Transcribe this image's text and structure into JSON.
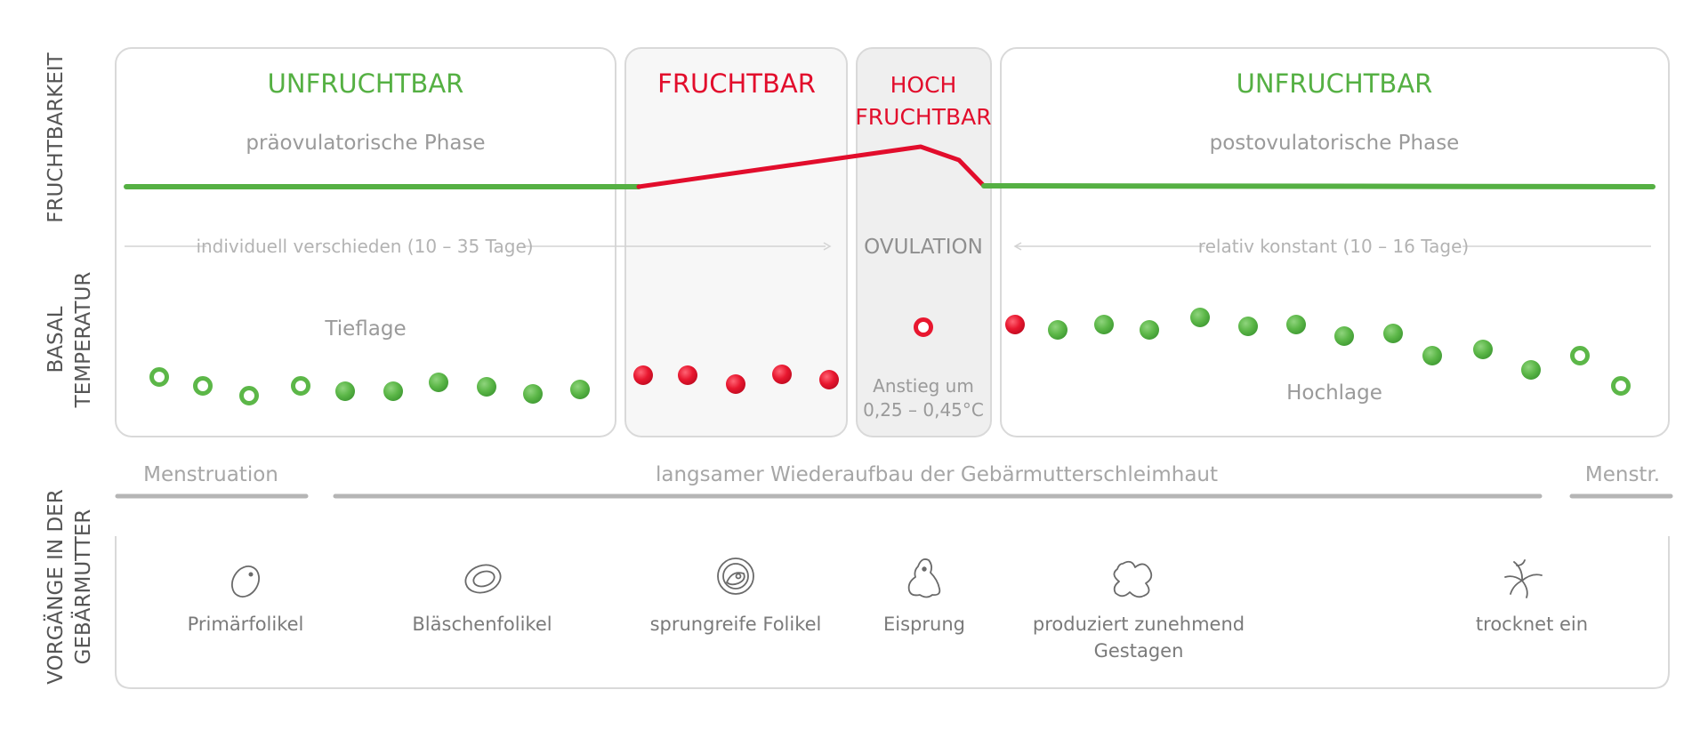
{
  "side_labels": {
    "fruchtbarkeit": "FRUCHTBARKEIT",
    "basal_line1": "BASAL",
    "basal_line2": "TEMPERATUR",
    "vorgaenge_line1": "VORGÄNGE IN DER",
    "vorgaenge_line2": "GEBÄRMUTTER"
  },
  "phases": {
    "unfruchtbar_1": "UNFRUCHTBAR",
    "fruchtbar": "FRUCHTBAR",
    "hoch_line1": "HOCH",
    "hoch_line2": "FRUCHTBAR",
    "unfruchtbar_2": "UNFRUCHTBAR",
    "praeovulatorisch": "präovulatorische Phase",
    "postovulatorisch": "postovulatorische Phase"
  },
  "durations": {
    "left": "individuell verschieden (10 – 35 Tage)",
    "ovulation": "OVULATION",
    "right": "relativ konstant (10 – 16 Tage)"
  },
  "temperature": {
    "tieflage": "Tieflage",
    "hochlage": "Hochlage",
    "anstieg_line1": "Anstieg um",
    "anstieg_line2": "0,25 – 0,45°C"
  },
  "uterus": {
    "menstruation": "Menstruation",
    "aufbau": "langsamer Wiederaufbau der Gebärmutterschleimhaut",
    "menstr": "Menstr."
  },
  "stages": {
    "primaer": "Primärfolikel",
    "blaeschen": "Bläschenfolikel",
    "sprungreif": "sprungreife Folikel",
    "eisprung": "Eisprung",
    "gestagen_line1": "produziert zunehmend",
    "gestagen_line2": "Gestagen",
    "trocknet": "trocknet ein"
  },
  "icons": [
    "primary-follicle-icon",
    "vesicle-follicle-icon",
    "mature-follicle-icon",
    "ovulation-icon",
    "corpus-luteum-icon",
    "dried-corpus-icon"
  ],
  "colors": {
    "green": "#55b043",
    "red": "#e20d2c",
    "grey_text": "#9a9a9a",
    "dark_grey_text": "#555555",
    "box_border": "#d9d9d9",
    "bar_grey": "#b5b5b5",
    "fruchtbar_fill": "#f7f7f7",
    "hoch_fill": "#efefef"
  }
}
